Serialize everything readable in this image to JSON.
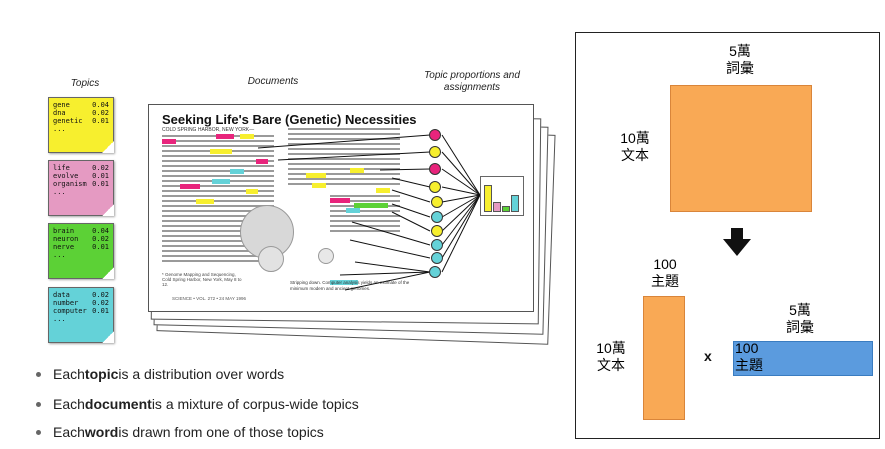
{
  "headers": {
    "topics": "Topics",
    "documents": "Documents",
    "proportions": "Topic proportions and assignments"
  },
  "topics": [
    {
      "color": "#f7ef2e",
      "rows": [
        [
          "gene",
          "0.04"
        ],
        [
          "dna",
          "0.02"
        ],
        [
          "genetic",
          "0.01"
        ],
        [
          "...",
          ""
        ]
      ]
    },
    {
      "color": "#e59ac2",
      "rows": [
        [
          "life",
          "0.02"
        ],
        [
          "evolve",
          "0.01"
        ],
        [
          "organism",
          "0.01"
        ],
        [
          "...",
          ""
        ]
      ]
    },
    {
      "color": "#5cd136",
      "rows": [
        [
          "brain",
          "0.04"
        ],
        [
          "neuron",
          "0.02"
        ],
        [
          "nerve",
          "0.01"
        ],
        [
          "...",
          ""
        ]
      ]
    },
    {
      "color": "#64d2d8",
      "rows": [
        [
          "data",
          "0.02"
        ],
        [
          "number",
          "0.02"
        ],
        [
          "computer",
          "0.01"
        ],
        [
          "...",
          ""
        ]
      ]
    }
  ],
  "document": {
    "title": "Seeking Life's Bare (Genetic) Necessities",
    "dateline": "COLD SPRING HARBOR, NEW YORK—",
    "caption": "Stripping down. Computer analysis yields an estimate of the minimum modern and ancient genomes.",
    "footnote": "* Genome Mapping and Sequencing, Cold Spring Harbor, New York, May 8 to 12.",
    "footer": "SCIENCE • VOL. 272 • 24 MAY 1996"
  },
  "proportion_dots": [
    "#e8247c",
    "#f7ef2e",
    "#e8247c",
    "#f7ef2e",
    "#f7ef2e",
    "#64d2d8",
    "#f7ef2e",
    "#64d2d8",
    "#64d2d8",
    "#64d2d8"
  ],
  "proportion_bars": [
    {
      "color": "#f7ef2e",
      "value": 0.9
    },
    {
      "color": "#e59ac2",
      "value": 0.3
    },
    {
      "color": "#5cd136",
      "value": 0.15
    },
    {
      "color": "#64d2d8",
      "value": 0.55
    }
  ],
  "bullets": [
    {
      "pre": "Each ",
      "bold": "topic",
      "post": " is a distribution over words"
    },
    {
      "pre": "Each ",
      "bold": "document",
      "post": " is a mixture of corpus-wide topics"
    },
    {
      "pre": "Each ",
      "bold": "word",
      "post": " is drawn from one of those topics"
    }
  ],
  "right_panel": {
    "top_words_label": [
      "5萬",
      "詞彙"
    ],
    "top_docs_label": [
      "10萬",
      "文本"
    ],
    "top_matrix_color": "#f9a955",
    "arrow_color": "#111111",
    "left_topics_label": [
      "100",
      "主題"
    ],
    "left_docs_label": [
      "10萬",
      "文本"
    ],
    "times": "x",
    "right_words_label": [
      "5萬",
      "詞彙"
    ],
    "right_topics_label": [
      "100",
      "主題"
    ],
    "left_matrix_color": "#f9a955",
    "right_matrix_color": "#5b9bde"
  }
}
